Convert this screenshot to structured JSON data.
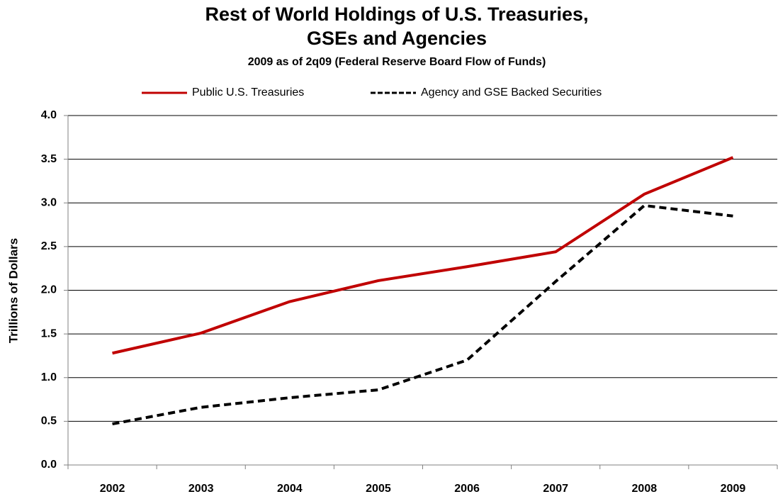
{
  "chart_data": {
    "type": "line",
    "title": [
      "Rest of World Holdings of U.S. Treasuries,",
      "GSEs and Agencies"
    ],
    "subtitle": "2009 as of 2q09 (Federal Reserve Board Flow of Funds)",
    "y_label": "Trillions of Dollars",
    "categories": [
      "2002",
      "2003",
      "2004",
      "2005",
      "2006",
      "2007",
      "2008",
      "2009"
    ],
    "series": [
      {
        "name": "Public U.S. Treasuries",
        "color": "#c00000",
        "dash": "solid",
        "values": [
          1.28,
          1.51,
          1.87,
          2.11,
          2.27,
          2.44,
          3.1,
          3.52
        ]
      },
      {
        "name": "Agency and GSE Backed Securities",
        "color": "#000000",
        "dash": "dashed",
        "values": [
          0.47,
          0.66,
          0.77,
          0.86,
          1.2,
          2.1,
          2.97,
          2.85
        ]
      }
    ],
    "ylim": [
      0,
      4
    ],
    "yticks": [
      {
        "value": 0,
        "label": "0.0"
      },
      0.5,
      {
        "value": 1,
        "label": "1.0"
      },
      1.5,
      {
        "value": 2,
        "label": "2.0"
      },
      2.5,
      {
        "value": 3,
        "label": "3.0"
      },
      3.5,
      {
        "value": 4,
        "label": "4.0"
      }
    ],
    "grid": true,
    "legend": "top"
  }
}
